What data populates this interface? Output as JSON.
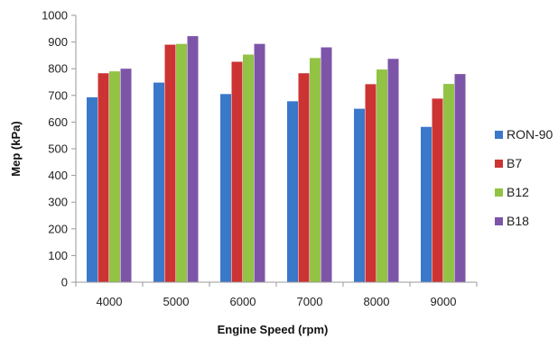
{
  "chart_data": {
    "type": "bar",
    "xlabel": "Engine Speed (rpm)",
    "ylabel": "Mep (kPa)",
    "ylim": [
      0,
      1000
    ],
    "yticks": [
      0,
      100,
      200,
      300,
      400,
      500,
      600,
      700,
      800,
      900,
      1000
    ],
    "categories": [
      "4000",
      "5000",
      "6000",
      "7000",
      "8000",
      "9000"
    ],
    "series": [
      {
        "name": "RON-90",
        "color": "#3a78c9",
        "values": [
          693,
          748,
          705,
          678,
          650,
          582
        ]
      },
      {
        "name": "B7",
        "color": "#cc3333",
        "values": [
          783,
          890,
          826,
          783,
          742,
          688
        ]
      },
      {
        "name": "B12",
        "color": "#92c344",
        "values": [
          790,
          893,
          853,
          840,
          797,
          743
        ]
      },
      {
        "name": "B18",
        "color": "#7d55a8",
        "values": [
          800,
          922,
          893,
          880,
          837,
          780
        ]
      }
    ],
    "grid": false,
    "legend_position": "right"
  }
}
